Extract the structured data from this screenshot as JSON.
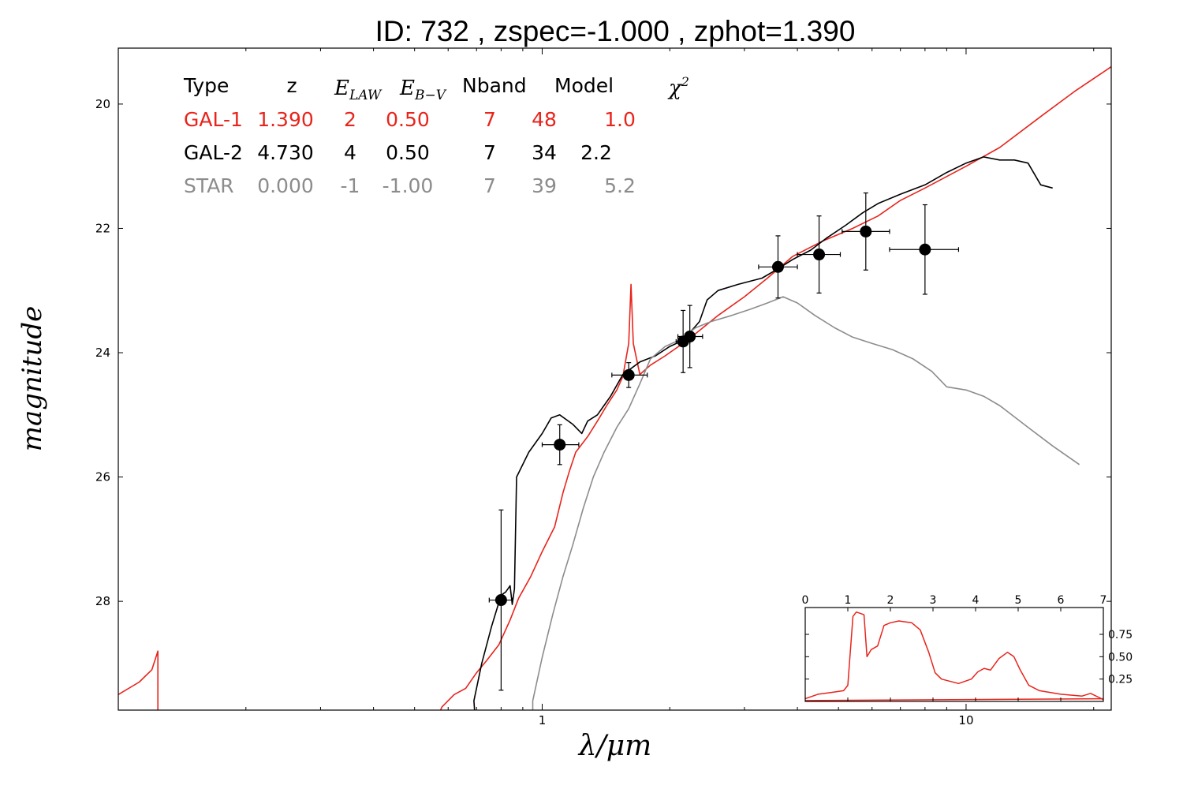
{
  "colors": {
    "gal1": "#e8241c",
    "gal2": "#000000",
    "star": "#8c8c8c",
    "points": "#000000"
  },
  "legend": {
    "header": {
      "type": "Type",
      "z": "z",
      "elaw_base": "E",
      "elaw_sub": "LAW",
      "ebv_base": "E",
      "ebv_sub": "B−V",
      "nband": "Nband",
      "model": "Model",
      "chi_base": "χ",
      "chi_sup": "2"
    },
    "rows": [
      {
        "type": "GAL-1",
        "z": "1.390",
        "elaw": "2",
        "ebv": "0.50",
        "nband": "7",
        "model": "48",
        "chi2": "1.0",
        "color": "#e8241c"
      },
      {
        "type": "GAL-2",
        "z": "4.730",
        "elaw": "4",
        "ebv": "0.50",
        "nband": "7",
        "model": "34",
        "chi2": "2.2",
        "color": "#000000"
      },
      {
        "type": "STAR",
        "z": "0.000",
        "elaw": "-1",
        "ebv": "-1.00",
        "nband": "7",
        "model": "39",
        "chi2": "5.2",
        "color": "#8c8c8c"
      }
    ]
  },
  "chart_data": [
    {
      "type": "line",
      "title": "ID:  732   , zspec=-1.000 , zphot=1.390",
      "xlabel_base": "λ/",
      "xlabel_unit": "μm",
      "ylabel": "magnitude",
      "x_scale": "log",
      "y_inverted": true,
      "xlim": [
        0.1,
        22
      ],
      "ylim": [
        29.75,
        19.1
      ],
      "x_major_ticks": [
        1,
        10
      ],
      "x_tick_labels": [
        "1",
        "10"
      ],
      "x_minor_ticks": [
        0.2,
        0.3,
        0.4,
        0.5,
        0.6,
        0.7,
        0.8,
        0.9,
        2,
        3,
        4,
        5,
        6,
        7,
        8,
        9,
        20
      ],
      "y_ticks": [
        20,
        22,
        24,
        26,
        28
      ],
      "y_tick_labels": [
        "20",
        "22",
        "24",
        "26",
        "28"
      ],
      "photometry": [
        {
          "x": 0.8,
          "y": 27.98,
          "xerr": [
            0.05,
            0.05
          ],
          "yerr": [
            1.45,
            1.45
          ]
        },
        {
          "x": 1.1,
          "y": 25.48,
          "xerr": [
            0.1,
            0.12
          ],
          "yerr": [
            0.32,
            0.32
          ]
        },
        {
          "x": 1.6,
          "y": 24.36,
          "xerr": [
            0.14,
            0.17
          ],
          "yerr": [
            0.2,
            0.2
          ]
        },
        {
          "x": 2.15,
          "y": 23.82,
          "xerr": [
            0.08,
            0.08
          ],
          "yerr": [
            0.5,
            0.5
          ]
        },
        {
          "x": 2.23,
          "y": 23.74,
          "xerr": [
            0.14,
            0.16
          ],
          "yerr": [
            0.5,
            0.5
          ]
        },
        {
          "x": 3.6,
          "y": 22.62,
          "xerr": [
            0.36,
            0.4
          ],
          "yerr": [
            0.5,
            0.5
          ]
        },
        {
          "x": 4.5,
          "y": 22.42,
          "xerr": [
            0.5,
            0.55
          ],
          "yerr": [
            0.62,
            0.62
          ]
        },
        {
          "x": 5.8,
          "y": 22.05,
          "xerr": [
            0.7,
            0.8
          ],
          "yerr": [
            0.62,
            0.62
          ]
        },
        {
          "x": 8.0,
          "y": 22.34,
          "xerr": [
            1.4,
            1.6
          ],
          "yerr": [
            0.72,
            0.72
          ]
        }
      ],
      "series": [
        {
          "name": "GAL-1",
          "color": "#e8241c",
          "points": [
            [
              0.1,
              29.5
            ],
            [
              0.112,
              29.3
            ],
            [
              0.12,
              29.1
            ],
            [
              0.124,
              28.8
            ],
            [
              0.124,
              30.2
            ],
            [
              0.18,
              30.2
            ],
            [
              0.54,
              30.2
            ],
            [
              0.58,
              29.7
            ],
            [
              0.62,
              29.5
            ],
            [
              0.66,
              29.4
            ],
            [
              0.7,
              29.15
            ],
            [
              0.74,
              28.95
            ],
            [
              0.79,
              28.7
            ],
            [
              0.84,
              28.3
            ],
            [
              0.88,
              27.95
            ],
            [
              0.94,
              27.6
            ],
            [
              1.0,
              27.2
            ],
            [
              1.07,
              26.8
            ],
            [
              1.12,
              26.25
            ],
            [
              1.16,
              25.9
            ],
            [
              1.2,
              25.6
            ],
            [
              1.28,
              25.35
            ],
            [
              1.35,
              25.1
            ],
            [
              1.42,
              24.85
            ],
            [
              1.5,
              24.6
            ],
            [
              1.55,
              24.38
            ],
            [
              1.6,
              23.85
            ],
            [
              1.62,
              22.9
            ],
            [
              1.64,
              23.85
            ],
            [
              1.7,
              24.35
            ],
            [
              1.8,
              24.2
            ],
            [
              1.95,
              24.05
            ],
            [
              2.2,
              23.8
            ],
            [
              2.6,
              23.4
            ],
            [
              3.0,
              23.1
            ],
            [
              3.4,
              22.8
            ],
            [
              3.9,
              22.45
            ],
            [
              4.6,
              22.2
            ],
            [
              5.4,
              22.0
            ],
            [
              6.2,
              21.8
            ],
            [
              7.0,
              21.55
            ],
            [
              8.0,
              21.35
            ],
            [
              10.0,
              21.0
            ],
            [
              12.0,
              20.7
            ],
            [
              15.0,
              20.2
            ],
            [
              18.0,
              19.8
            ],
            [
              22.0,
              19.4
            ]
          ]
        },
        {
          "name": "GAL-2",
          "color": "#000000",
          "points": [
            [
              0.7,
              30.2
            ],
            [
              0.69,
              29.6
            ],
            [
              0.72,
              29.0
            ],
            [
              0.76,
              28.4
            ],
            [
              0.8,
              27.9
            ],
            [
              0.82,
              27.85
            ],
            [
              0.84,
              27.75
            ],
            [
              0.85,
              28.05
            ],
            [
              0.86,
              27.8
            ],
            [
              0.87,
              26.0
            ],
            [
              0.93,
              25.6
            ],
            [
              1.0,
              25.3
            ],
            [
              1.05,
              25.05
            ],
            [
              1.1,
              25.0
            ],
            [
              1.18,
              25.15
            ],
            [
              1.24,
              25.3
            ],
            [
              1.28,
              25.1
            ],
            [
              1.35,
              25.0
            ],
            [
              1.45,
              24.7
            ],
            [
              1.55,
              24.35
            ],
            [
              1.7,
              24.15
            ],
            [
              1.85,
              24.05
            ],
            [
              2.0,
              23.9
            ],
            [
              2.15,
              23.8
            ],
            [
              2.35,
              23.5
            ],
            [
              2.45,
              23.15
            ],
            [
              2.6,
              23.0
            ],
            [
              2.9,
              22.9
            ],
            [
              3.3,
              22.8
            ],
            [
              3.6,
              22.65
            ],
            [
              3.9,
              22.5
            ],
            [
              4.3,
              22.35
            ],
            [
              4.7,
              22.15
            ],
            [
              5.2,
              21.95
            ],
            [
              5.7,
              21.75
            ],
            [
              6.2,
              21.6
            ],
            [
              7.0,
              21.45
            ],
            [
              8.0,
              21.3
            ],
            [
              9.0,
              21.1
            ],
            [
              10.0,
              20.95
            ],
            [
              11.0,
              20.85
            ],
            [
              12.0,
              20.9
            ],
            [
              13.0,
              20.9
            ],
            [
              14.0,
              20.95
            ],
            [
              15.0,
              21.3
            ],
            [
              16.0,
              21.35
            ]
          ]
        },
        {
          "name": "STAR",
          "color": "#8c8c8c",
          "points": [
            [
              0.95,
              30.2
            ],
            [
              0.95,
              29.6
            ],
            [
              1.0,
              28.9
            ],
            [
              1.06,
              28.2
            ],
            [
              1.12,
              27.6
            ],
            [
              1.18,
              27.1
            ],
            [
              1.25,
              26.5
            ],
            [
              1.32,
              26.0
            ],
            [
              1.4,
              25.6
            ],
            [
              1.5,
              25.2
            ],
            [
              1.6,
              24.9
            ],
            [
              1.7,
              24.5
            ],
            [
              1.8,
              24.1
            ],
            [
              1.95,
              23.9
            ],
            [
              2.1,
              23.8
            ],
            [
              2.3,
              23.6
            ],
            [
              2.5,
              23.5
            ],
            [
              2.8,
              23.4
            ],
            [
              3.1,
              23.3
            ],
            [
              3.4,
              23.2
            ],
            [
              3.7,
              23.1
            ],
            [
              4.0,
              23.2
            ],
            [
              4.4,
              23.4
            ],
            [
              4.9,
              23.6
            ],
            [
              5.4,
              23.75
            ],
            [
              6.0,
              23.85
            ],
            [
              6.7,
              23.95
            ],
            [
              7.5,
              24.1
            ],
            [
              8.3,
              24.3
            ],
            [
              9.0,
              24.55
            ],
            [
              10.0,
              24.6
            ],
            [
              11.0,
              24.7
            ],
            [
              12.0,
              24.85
            ],
            [
              14.0,
              25.2
            ],
            [
              16.0,
              25.5
            ],
            [
              18.5,
              25.8
            ]
          ]
        }
      ]
    },
    {
      "type": "line",
      "title": "",
      "xlim": [
        0,
        7
      ],
      "ylim": [
        0,
        1.05
      ],
      "x_ticks": [
        0,
        1,
        2,
        3,
        4,
        5,
        6,
        7
      ],
      "x_tick_labels": [
        "0",
        "1",
        "2",
        "3",
        "4",
        "5",
        "6",
        "7"
      ],
      "y_ticks": [
        0.25,
        0.5,
        0.75
      ],
      "y_tick_labels": [
        "0.25",
        "0.50",
        "0.75"
      ],
      "series": [
        {
          "color": "#e8241c",
          "points": [
            [
              0.0,
              0.03
            ],
            [
              0.3,
              0.08
            ],
            [
              0.6,
              0.1
            ],
            [
              0.9,
              0.12
            ],
            [
              1.0,
              0.18
            ],
            [
              1.12,
              0.95
            ],
            [
              1.2,
              1.0
            ],
            [
              1.38,
              0.97
            ],
            [
              1.45,
              0.5
            ],
            [
              1.55,
              0.58
            ],
            [
              1.7,
              0.62
            ],
            [
              1.85,
              0.85
            ],
            [
              2.0,
              0.88
            ],
            [
              2.2,
              0.9
            ],
            [
              2.5,
              0.88
            ],
            [
              2.7,
              0.8
            ],
            [
              2.9,
              0.55
            ],
            [
              3.05,
              0.32
            ],
            [
              3.2,
              0.25
            ],
            [
              3.6,
              0.2
            ],
            [
              3.9,
              0.25
            ],
            [
              4.05,
              0.33
            ],
            [
              4.2,
              0.37
            ],
            [
              4.35,
              0.35
            ],
            [
              4.55,
              0.48
            ],
            [
              4.75,
              0.55
            ],
            [
              4.9,
              0.5
            ],
            [
              5.05,
              0.35
            ],
            [
              5.25,
              0.18
            ],
            [
              5.5,
              0.12
            ],
            [
              6.0,
              0.08
            ],
            [
              6.5,
              0.06
            ],
            [
              6.7,
              0.09
            ],
            [
              7.0,
              0.02
            ]
          ]
        },
        {
          "color": "#e8241c",
          "points": [
            [
              0.0,
              0.01
            ],
            [
              7.0,
              0.03
            ]
          ]
        }
      ]
    }
  ]
}
